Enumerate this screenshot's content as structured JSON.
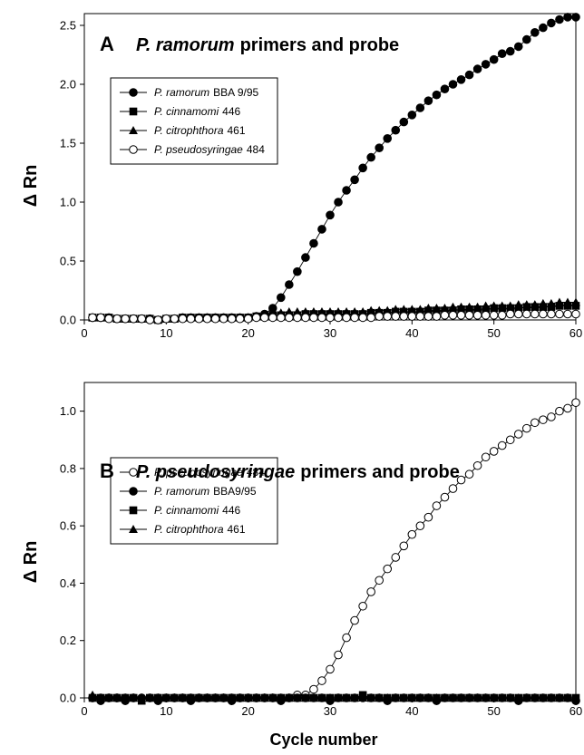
{
  "chart_data": [
    {
      "type": "scatter",
      "panel_letter": "A",
      "title_species": "P. ramorum",
      "title_rest": "primers and probe",
      "ylabel": "Δ Rn",
      "xlabel": "Cycle number",
      "xlim": [
        0,
        60
      ],
      "ylim": [
        0,
        2.6
      ],
      "xticks": [
        "0",
        "10",
        "20",
        "30",
        "40",
        "50",
        "60"
      ],
      "yticks": [
        "0.0",
        "0.5",
        "1.0",
        "1.5",
        "2.0",
        "2.5"
      ],
      "legend_position": "upper-left",
      "series": [
        {
          "name": "P. ramorum BBA 9/95",
          "species": "P. ramorum",
          "strain": "BBA 9/95",
          "marker": "circle-filled",
          "x": [
            1,
            2,
            3,
            4,
            5,
            6,
            7,
            8,
            9,
            10,
            11,
            12,
            13,
            14,
            15,
            16,
            17,
            18,
            19,
            20,
            21,
            22,
            23,
            24,
            25,
            26,
            27,
            28,
            29,
            30,
            31,
            32,
            33,
            34,
            35,
            36,
            37,
            38,
            39,
            40,
            41,
            42,
            43,
            44,
            45,
            46,
            47,
            48,
            49,
            50,
            51,
            52,
            53,
            54,
            55,
            56,
            57,
            58,
            59,
            60
          ],
          "y": [
            0.02,
            0.02,
            0.02,
            0.01,
            0.01,
            0.01,
            0.01,
            0.01,
            0.0,
            0.01,
            0.01,
            0.02,
            0.02,
            0.02,
            0.02,
            0.02,
            0.02,
            0.02,
            0.02,
            0.02,
            0.03,
            0.05,
            0.1,
            0.19,
            0.3,
            0.41,
            0.53,
            0.65,
            0.77,
            0.89,
            1.0,
            1.1,
            1.19,
            1.29,
            1.38,
            1.46,
            1.54,
            1.61,
            1.68,
            1.74,
            1.8,
            1.86,
            1.91,
            1.96,
            2.0,
            2.04,
            2.08,
            2.13,
            2.17,
            2.21,
            2.26,
            2.28,
            2.32,
            2.38,
            2.44,
            2.48,
            2.52,
            2.55,
            2.57,
            2.57
          ]
        },
        {
          "name": "P. cinnamomi 446",
          "species": "P. cinnamomi",
          "strain": "446",
          "marker": "square-filled",
          "x": [
            1,
            2,
            3,
            4,
            5,
            6,
            7,
            8,
            9,
            10,
            11,
            12,
            13,
            14,
            15,
            16,
            17,
            18,
            19,
            20,
            21,
            22,
            23,
            24,
            25,
            26,
            27,
            28,
            29,
            30,
            31,
            32,
            33,
            34,
            35,
            36,
            37,
            38,
            39,
            40,
            41,
            42,
            43,
            44,
            45,
            46,
            47,
            48,
            49,
            50,
            51,
            52,
            53,
            54,
            55,
            56,
            57,
            58,
            59,
            60
          ],
          "y": [
            0.02,
            0.02,
            0.02,
            0.01,
            0.01,
            0.01,
            0.01,
            0.01,
            0.0,
            0.01,
            0.01,
            0.02,
            0.02,
            0.02,
            0.02,
            0.02,
            0.02,
            0.02,
            0.02,
            0.02,
            0.03,
            0.03,
            0.04,
            0.04,
            0.04,
            0.04,
            0.05,
            0.05,
            0.05,
            0.05,
            0.05,
            0.05,
            0.05,
            0.05,
            0.06,
            0.06,
            0.06,
            0.07,
            0.07,
            0.07,
            0.07,
            0.08,
            0.08,
            0.08,
            0.08,
            0.09,
            0.09,
            0.09,
            0.09,
            0.1,
            0.1,
            0.1,
            0.1,
            0.11,
            0.11,
            0.11,
            0.11,
            0.12,
            0.12,
            0.12
          ]
        },
        {
          "name": "P. citrophthora 461",
          "species": "P. citrophthora",
          "strain": "461",
          "marker": "triangle-filled",
          "x": [
            1,
            2,
            3,
            4,
            5,
            6,
            7,
            8,
            9,
            10,
            11,
            12,
            13,
            14,
            15,
            16,
            17,
            18,
            19,
            20,
            21,
            22,
            23,
            24,
            25,
            26,
            27,
            28,
            29,
            30,
            31,
            32,
            33,
            34,
            35,
            36,
            37,
            38,
            39,
            40,
            41,
            42,
            43,
            44,
            45,
            46,
            47,
            48,
            49,
            50,
            51,
            52,
            53,
            54,
            55,
            56,
            57,
            58,
            59,
            60
          ],
          "y": [
            0.02,
            0.02,
            0.02,
            0.01,
            0.01,
            0.01,
            0.01,
            0.01,
            0.0,
            0.01,
            0.01,
            0.02,
            0.02,
            0.02,
            0.02,
            0.02,
            0.02,
            0.02,
            0.02,
            0.02,
            0.03,
            0.04,
            0.05,
            0.06,
            0.07,
            0.07,
            0.07,
            0.07,
            0.07,
            0.07,
            0.07,
            0.07,
            0.07,
            0.07,
            0.08,
            0.08,
            0.08,
            0.09,
            0.09,
            0.09,
            0.09,
            0.1,
            0.1,
            0.1,
            0.11,
            0.11,
            0.11,
            0.11,
            0.12,
            0.12,
            0.12,
            0.12,
            0.13,
            0.13,
            0.13,
            0.14,
            0.14,
            0.15,
            0.15,
            0.15
          ]
        },
        {
          "name": "P. pseudosyringae 484",
          "species": "P. pseudosyringae",
          "strain": "484",
          "marker": "circle-open",
          "x": [
            1,
            2,
            3,
            4,
            5,
            6,
            7,
            8,
            9,
            10,
            11,
            12,
            13,
            14,
            15,
            16,
            17,
            18,
            19,
            20,
            21,
            22,
            23,
            24,
            25,
            26,
            27,
            28,
            29,
            30,
            31,
            32,
            33,
            34,
            35,
            36,
            37,
            38,
            39,
            40,
            41,
            42,
            43,
            44,
            45,
            46,
            47,
            48,
            49,
            50,
            51,
            52,
            53,
            54,
            55,
            56,
            57,
            58,
            59,
            60
          ],
          "y": [
            0.02,
            0.02,
            0.01,
            0.01,
            0.01,
            0.01,
            0.01,
            0.0,
            0.0,
            0.01,
            0.01,
            0.01,
            0.01,
            0.01,
            0.01,
            0.01,
            0.01,
            0.01,
            0.01,
            0.01,
            0.02,
            0.02,
            0.02,
            0.02,
            0.02,
            0.02,
            0.02,
            0.02,
            0.02,
            0.02,
            0.02,
            0.02,
            0.02,
            0.02,
            0.02,
            0.03,
            0.03,
            0.03,
            0.03,
            0.03,
            0.03,
            0.03,
            0.03,
            0.04,
            0.04,
            0.04,
            0.04,
            0.04,
            0.04,
            0.04,
            0.04,
            0.05,
            0.05,
            0.05,
            0.05,
            0.05,
            0.05,
            0.05,
            0.05,
            0.05
          ]
        }
      ]
    },
    {
      "type": "scatter",
      "panel_letter": "B",
      "title_species": "P. pseudosyringae",
      "title_rest": "primers and probe",
      "ylabel": "Δ Rn",
      "xlabel": "Cycle number",
      "xlim": [
        0,
        60
      ],
      "ylim": [
        0,
        1.1
      ],
      "xticks": [
        "0",
        "10",
        "20",
        "30",
        "40",
        "50",
        "60"
      ],
      "yticks": [
        "0.0",
        "0.2",
        "0.4",
        "0.6",
        "0.8",
        "1.0"
      ],
      "legend_position": "upper-left",
      "series": [
        {
          "name": "P. pseudosyringae 484",
          "species": "P. pseudosyringae",
          "strain": "484",
          "marker": "circle-open",
          "x": [
            1,
            2,
            3,
            4,
            5,
            6,
            7,
            8,
            9,
            10,
            11,
            12,
            13,
            14,
            15,
            16,
            17,
            18,
            19,
            20,
            21,
            22,
            23,
            24,
            25,
            26,
            27,
            28,
            29,
            30,
            31,
            32,
            33,
            34,
            35,
            36,
            37,
            38,
            39,
            40,
            41,
            42,
            43,
            44,
            45,
            46,
            47,
            48,
            49,
            50,
            51,
            52,
            53,
            54,
            55,
            56,
            57,
            58,
            59,
            60
          ],
          "y": [
            0.0,
            0.0,
            0.0,
            0.0,
            0.0,
            0.0,
            0.0,
            0.0,
            0.0,
            0.0,
            0.0,
            0.0,
            0.0,
            0.0,
            0.0,
            0.0,
            0.0,
            0.0,
            0.0,
            0.0,
            0.0,
            0.0,
            0.0,
            0.0,
            0.0,
            0.01,
            0.01,
            0.03,
            0.06,
            0.1,
            0.15,
            0.21,
            0.27,
            0.32,
            0.37,
            0.41,
            0.45,
            0.49,
            0.53,
            0.57,
            0.6,
            0.63,
            0.67,
            0.7,
            0.73,
            0.76,
            0.78,
            0.81,
            0.84,
            0.86,
            0.88,
            0.9,
            0.92,
            0.94,
            0.96,
            0.97,
            0.98,
            1.0,
            1.01,
            1.03
          ]
        },
        {
          "name": "P. ramorum BBA9/95",
          "species": "P. ramorum",
          "strain": "BBA9/95",
          "marker": "circle-filled",
          "x": [
            1,
            2,
            3,
            4,
            5,
            6,
            7,
            8,
            9,
            10,
            11,
            12,
            13,
            14,
            15,
            16,
            17,
            18,
            19,
            20,
            21,
            22,
            23,
            24,
            25,
            26,
            27,
            28,
            29,
            30,
            31,
            32,
            33,
            34,
            35,
            36,
            37,
            38,
            39,
            40,
            41,
            42,
            43,
            44,
            45,
            46,
            47,
            48,
            49,
            50,
            51,
            52,
            53,
            54,
            55,
            56,
            57,
            58,
            59,
            60
          ],
          "y": [
            0.0,
            -0.01,
            0.0,
            0.0,
            -0.01,
            0.0,
            0.0,
            0.0,
            -0.01,
            0.0,
            0.0,
            0.0,
            -0.01,
            0.0,
            0.0,
            0.0,
            0.0,
            -0.01,
            0.0,
            0.0,
            0.0,
            0.0,
            0.0,
            -0.01,
            0.0,
            0.0,
            0.0,
            0.0,
            0.0,
            -0.01,
            0.0,
            0.0,
            0.0,
            0.0,
            0.0,
            0.0,
            -0.01,
            0.0,
            0.0,
            0.0,
            0.0,
            0.0,
            -0.01,
            0.0,
            0.0,
            0.0,
            0.0,
            0.0,
            0.0,
            0.0,
            0.0,
            0.0,
            -0.01,
            0.0,
            0.0,
            0.0,
            0.0,
            0.0,
            0.0,
            -0.01
          ]
        },
        {
          "name": "P. cinnamomi 446",
          "species": "P. cinnamomi",
          "strain": "446",
          "marker": "square-filled",
          "x": [
            1,
            2,
            3,
            4,
            5,
            6,
            7,
            8,
            9,
            10,
            11,
            12,
            13,
            14,
            15,
            16,
            17,
            18,
            19,
            20,
            21,
            22,
            23,
            24,
            25,
            26,
            27,
            28,
            29,
            30,
            31,
            32,
            33,
            34,
            35,
            36,
            37,
            38,
            39,
            40,
            41,
            42,
            43,
            44,
            45,
            46,
            47,
            48,
            49,
            50,
            51,
            52,
            53,
            54,
            55,
            56,
            57,
            58,
            59,
            60
          ],
          "y": [
            0.0,
            0.0,
            0.0,
            0.0,
            0.0,
            0.0,
            -0.01,
            0.0,
            0.0,
            0.0,
            0.0,
            0.0,
            0.0,
            0.0,
            0.0,
            0.0,
            0.0,
            0.0,
            0.0,
            0.0,
            0.0,
            0.0,
            0.0,
            0.0,
            0.0,
            0.0,
            0.0,
            0.0,
            0.0,
            0.0,
            0.0,
            0.0,
            0.0,
            0.01,
            0.0,
            0.0,
            0.0,
            0.0,
            0.0,
            0.0,
            0.0,
            0.0,
            0.0,
            0.0,
            0.0,
            0.0,
            0.0,
            0.0,
            0.0,
            0.0,
            0.0,
            0.0,
            0.0,
            0.0,
            0.0,
            0.0,
            0.0,
            0.0,
            0.0,
            0.0
          ]
        },
        {
          "name": "P. citrophthora 461",
          "species": "P. citrophthora",
          "strain": "461",
          "marker": "triangle-filled",
          "x": [
            1,
            2,
            3,
            4,
            5,
            6,
            7,
            8,
            9,
            10,
            11,
            12,
            13,
            14,
            15,
            16,
            17,
            18,
            19,
            20,
            21,
            22,
            23,
            24,
            25,
            26,
            27,
            28,
            29,
            30,
            31,
            32,
            33,
            34,
            35,
            36,
            37,
            38,
            39,
            40,
            41,
            42,
            43,
            44,
            45,
            46,
            47,
            48,
            49,
            50,
            51,
            52,
            53,
            54,
            55,
            56,
            57,
            58,
            59,
            60
          ],
          "y": [
            0.01,
            0.0,
            0.0,
            0.0,
            0.0,
            0.0,
            0.0,
            0.0,
            0.0,
            0.0,
            0.0,
            0.0,
            0.0,
            0.0,
            0.0,
            0.0,
            0.0,
            0.0,
            0.0,
            0.0,
            0.0,
            0.0,
            0.0,
            0.0,
            0.0,
            0.0,
            0.0,
            0.0,
            0.0,
            0.0,
            0.0,
            0.0,
            0.0,
            0.0,
            0.0,
            0.0,
            0.0,
            0.0,
            0.0,
            0.0,
            0.0,
            0.0,
            0.0,
            0.0,
            0.0,
            0.0,
            0.0,
            0.0,
            0.0,
            0.0,
            0.0,
            0.0,
            0.0,
            0.0,
            0.0,
            0.0,
            0.0,
            0.0,
            0.0,
            0.0
          ]
        }
      ]
    }
  ]
}
